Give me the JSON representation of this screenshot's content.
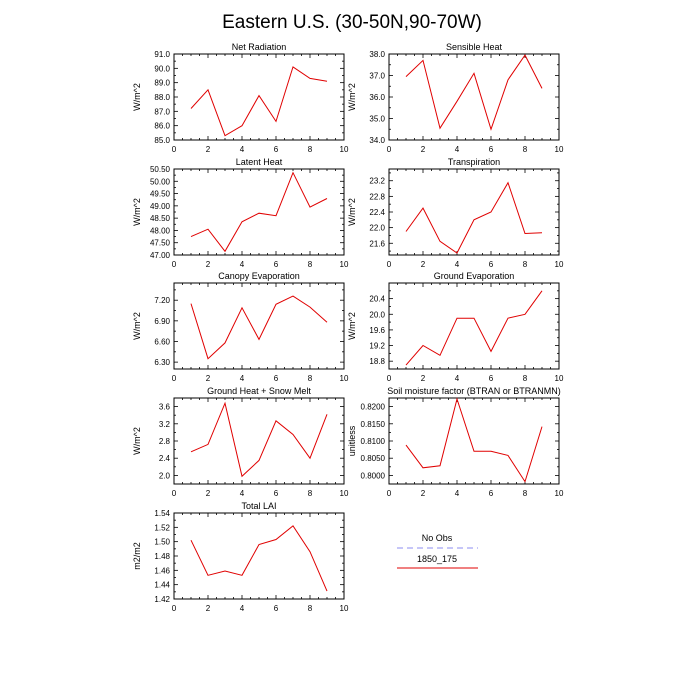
{
  "figure": {
    "title": "Eastern U.S. (30-50N,90-70W)"
  },
  "legend": {
    "entries": [
      {
        "label": "No Obs",
        "color": "#8e8ef0",
        "dashed": true
      },
      {
        "label": "1850_175",
        "color": "#e00000",
        "dashed": false
      }
    ]
  },
  "chart_data": [
    {
      "type": "line",
      "title": "Net Radiation",
      "ylabel": "W/m^2",
      "xlim": [
        0,
        10
      ],
      "ylim": [
        85.0,
        91.0
      ],
      "xticks": [
        0,
        2,
        4,
        6,
        8,
        10
      ],
      "yticks": [
        85.0,
        86.0,
        87.0,
        88.0,
        89.0,
        90.0,
        91.0
      ],
      "ytick_labels": [
        "85.0",
        "86.0",
        "87.0",
        "88.0",
        "89.0",
        "90.0",
        "91.0"
      ],
      "series": [
        {
          "color": "#e00000",
          "x": [
            1,
            2,
            3,
            4,
            5,
            6,
            7,
            8,
            9
          ],
          "values": [
            87.2,
            88.5,
            85.3,
            86.0,
            88.1,
            86.3,
            90.1,
            89.3,
            89.1
          ]
        }
      ]
    },
    {
      "type": "line",
      "title": "Sensible Heat",
      "ylabel": "W/m^2",
      "xlim": [
        0,
        10
      ],
      "ylim": [
        34.0,
        38.0
      ],
      "xticks": [
        0,
        2,
        4,
        6,
        8,
        10
      ],
      "yticks": [
        34.0,
        35.0,
        36.0,
        37.0,
        38.0
      ],
      "ytick_labels": [
        "34.0",
        "35.0",
        "36.0",
        "37.0",
        "38.0"
      ],
      "series": [
        {
          "color": "#e00000",
          "x": [
            1,
            2,
            3,
            4,
            5,
            6,
            7,
            8,
            9
          ],
          "values": [
            36.95,
            37.7,
            34.55,
            35.8,
            37.1,
            34.5,
            36.8,
            37.95,
            36.4
          ]
        }
      ]
    },
    {
      "type": "line",
      "title": "Latent Heat",
      "ylabel": "W/m^2",
      "xlim": [
        0,
        10
      ],
      "ylim": [
        47.0,
        50.5
      ],
      "xticks": [
        0,
        2,
        4,
        6,
        8,
        10
      ],
      "yticks": [
        47.0,
        47.5,
        48.0,
        48.5,
        49.0,
        49.5,
        50.0,
        50.5
      ],
      "ytick_labels": [
        "47.00",
        "47.50",
        "48.00",
        "48.50",
        "49.00",
        "49.50",
        "50.00",
        "50.50"
      ],
      "series": [
        {
          "color": "#e00000",
          "x": [
            1,
            2,
            3,
            4,
            5,
            6,
            7,
            8,
            9
          ],
          "values": [
            47.75,
            48.05,
            47.15,
            48.35,
            48.7,
            48.6,
            50.35,
            48.95,
            49.3
          ]
        }
      ]
    },
    {
      "type": "line",
      "title": "Transpiration",
      "ylabel": "W/m^2",
      "xlim": [
        0,
        10
      ],
      "ylim": [
        21.3,
        23.5
      ],
      "xticks": [
        0,
        2,
        4,
        6,
        8,
        10
      ],
      "yticks": [
        21.6,
        22.0,
        22.4,
        22.8,
        23.2
      ],
      "ytick_labels": [
        "21.6",
        "22.0",
        "22.4",
        "22.8",
        "23.2"
      ],
      "series": [
        {
          "color": "#e00000",
          "x": [
            1,
            2,
            3,
            4,
            5,
            6,
            7,
            8,
            9
          ],
          "values": [
            21.9,
            22.5,
            21.65,
            21.35,
            22.2,
            22.4,
            23.15,
            21.85,
            21.87
          ]
        }
      ]
    },
    {
      "type": "line",
      "title": "Canopy Evaporation",
      "ylabel": "W/m^2",
      "xlim": [
        0,
        10
      ],
      "ylim": [
        6.2,
        7.45
      ],
      "xticks": [
        0,
        2,
        4,
        6,
        8,
        10
      ],
      "yticks": [
        6.3,
        6.6,
        6.9,
        7.2
      ],
      "ytick_labels": [
        "6.30",
        "6.60",
        "6.90",
        "7.20"
      ],
      "series": [
        {
          "color": "#e00000",
          "x": [
            1,
            2,
            3,
            4,
            5,
            6,
            7,
            8,
            9
          ],
          "values": [
            7.15,
            6.35,
            6.58,
            7.09,
            6.63,
            7.14,
            7.26,
            7.1,
            6.88
          ]
        }
      ]
    },
    {
      "type": "line",
      "title": "Ground Evaporation",
      "ylabel": "W/m^2",
      "xlim": [
        0,
        10
      ],
      "ylim": [
        18.6,
        20.8
      ],
      "xticks": [
        0,
        2,
        4,
        6,
        8,
        10
      ],
      "yticks": [
        18.8,
        19.2,
        19.6,
        20.0,
        20.4
      ],
      "ytick_labels": [
        "18.8",
        "19.2",
        "19.6",
        "20.0",
        "20.4"
      ],
      "series": [
        {
          "color": "#e00000",
          "x": [
            1,
            2,
            3,
            4,
            5,
            6,
            7,
            8,
            9
          ],
          "values": [
            18.7,
            19.2,
            18.95,
            19.9,
            19.9,
            19.05,
            19.9,
            20.0,
            20.6
          ]
        }
      ]
    },
    {
      "type": "line",
      "title": "Ground Heat + Snow Melt",
      "ylabel": "W/m^2",
      "xlim": [
        0,
        10
      ],
      "ylim": [
        1.8,
        3.8
      ],
      "xticks": [
        0,
        2,
        4,
        6,
        8,
        10
      ],
      "yticks": [
        2.0,
        2.4,
        2.8,
        3.2,
        3.6
      ],
      "ytick_labels": [
        "2.0",
        "2.4",
        "2.8",
        "3.2",
        "3.6"
      ],
      "series": [
        {
          "color": "#e00000",
          "x": [
            1,
            2,
            3,
            4,
            5,
            6,
            7,
            8,
            9
          ],
          "values": [
            2.55,
            2.72,
            3.68,
            1.98,
            2.35,
            3.27,
            2.95,
            2.4,
            3.42
          ]
        }
      ]
    },
    {
      "type": "line",
      "title": "Soil moisture factor (BTRAN or BTRANMN)",
      "ylabel": "unitless",
      "xlim": [
        0,
        10
      ],
      "ylim": [
        0.7975,
        0.8225
      ],
      "xticks": [
        0,
        2,
        4,
        6,
        8,
        10
      ],
      "yticks": [
        0.8,
        0.805,
        0.81,
        0.815,
        0.82
      ],
      "ytick_labels": [
        "0.8000",
        "0.8050",
        "0.8100",
        "0.8150",
        "0.8200"
      ],
      "series": [
        {
          "color": "#e00000",
          "x": [
            1,
            2,
            3,
            4,
            5,
            6,
            7,
            8,
            9
          ],
          "values": [
            0.8088,
            0.8022,
            0.8028,
            0.8222,
            0.807,
            0.807,
            0.8058,
            0.7982,
            0.8142
          ]
        }
      ]
    },
    {
      "type": "line",
      "title": "Total LAI",
      "ylabel": "m2/m2",
      "xlim": [
        0,
        10
      ],
      "ylim": [
        1.42,
        1.54
      ],
      "xticks": [
        0,
        2,
        4,
        6,
        8,
        10
      ],
      "yticks": [
        1.42,
        1.44,
        1.46,
        1.48,
        1.5,
        1.52,
        1.54
      ],
      "ytick_labels": [
        "1.42",
        "1.44",
        "1.46",
        "1.48",
        "1.50",
        "1.52",
        "1.54"
      ],
      "series": [
        {
          "color": "#e00000",
          "x": [
            1,
            2,
            3,
            4,
            5,
            6,
            7,
            8,
            9
          ],
          "values": [
            1.502,
            1.453,
            1.459,
            1.453,
            1.496,
            1.503,
            1.522,
            1.486,
            1.431
          ]
        }
      ]
    }
  ]
}
